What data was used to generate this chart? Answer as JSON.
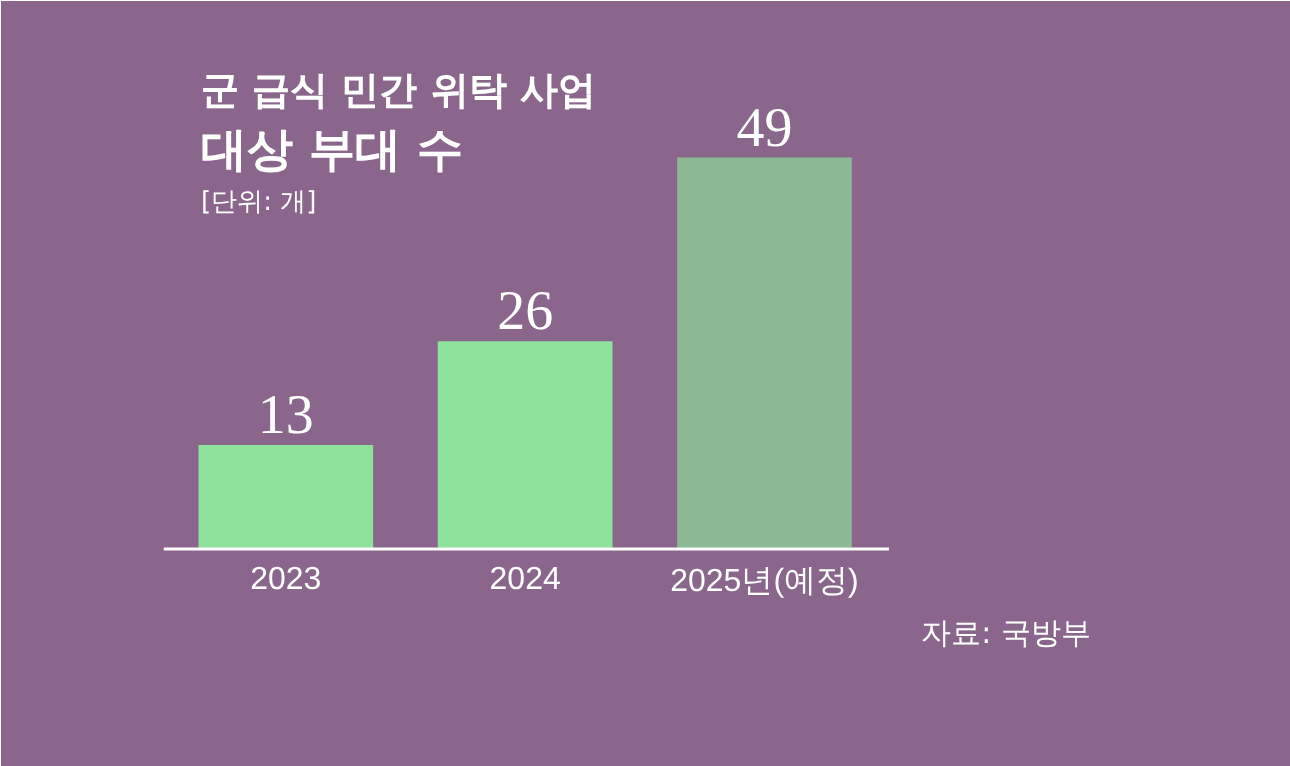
{
  "chart_data": {
    "type": "bar",
    "title": "군 급식 민간 위탁 사업\n대상 부대 수",
    "subtitle": "[단위: 개]",
    "categories": [
      "2023",
      "2024",
      "2025년(예정)"
    ],
    "values": [
      13,
      26,
      49
    ],
    "colors": [
      "#8ee29c",
      "#8ee29c",
      "#8ab994"
    ],
    "data_labels": true,
    "annotations": [
      "자료: 국방부"
    ]
  }
}
